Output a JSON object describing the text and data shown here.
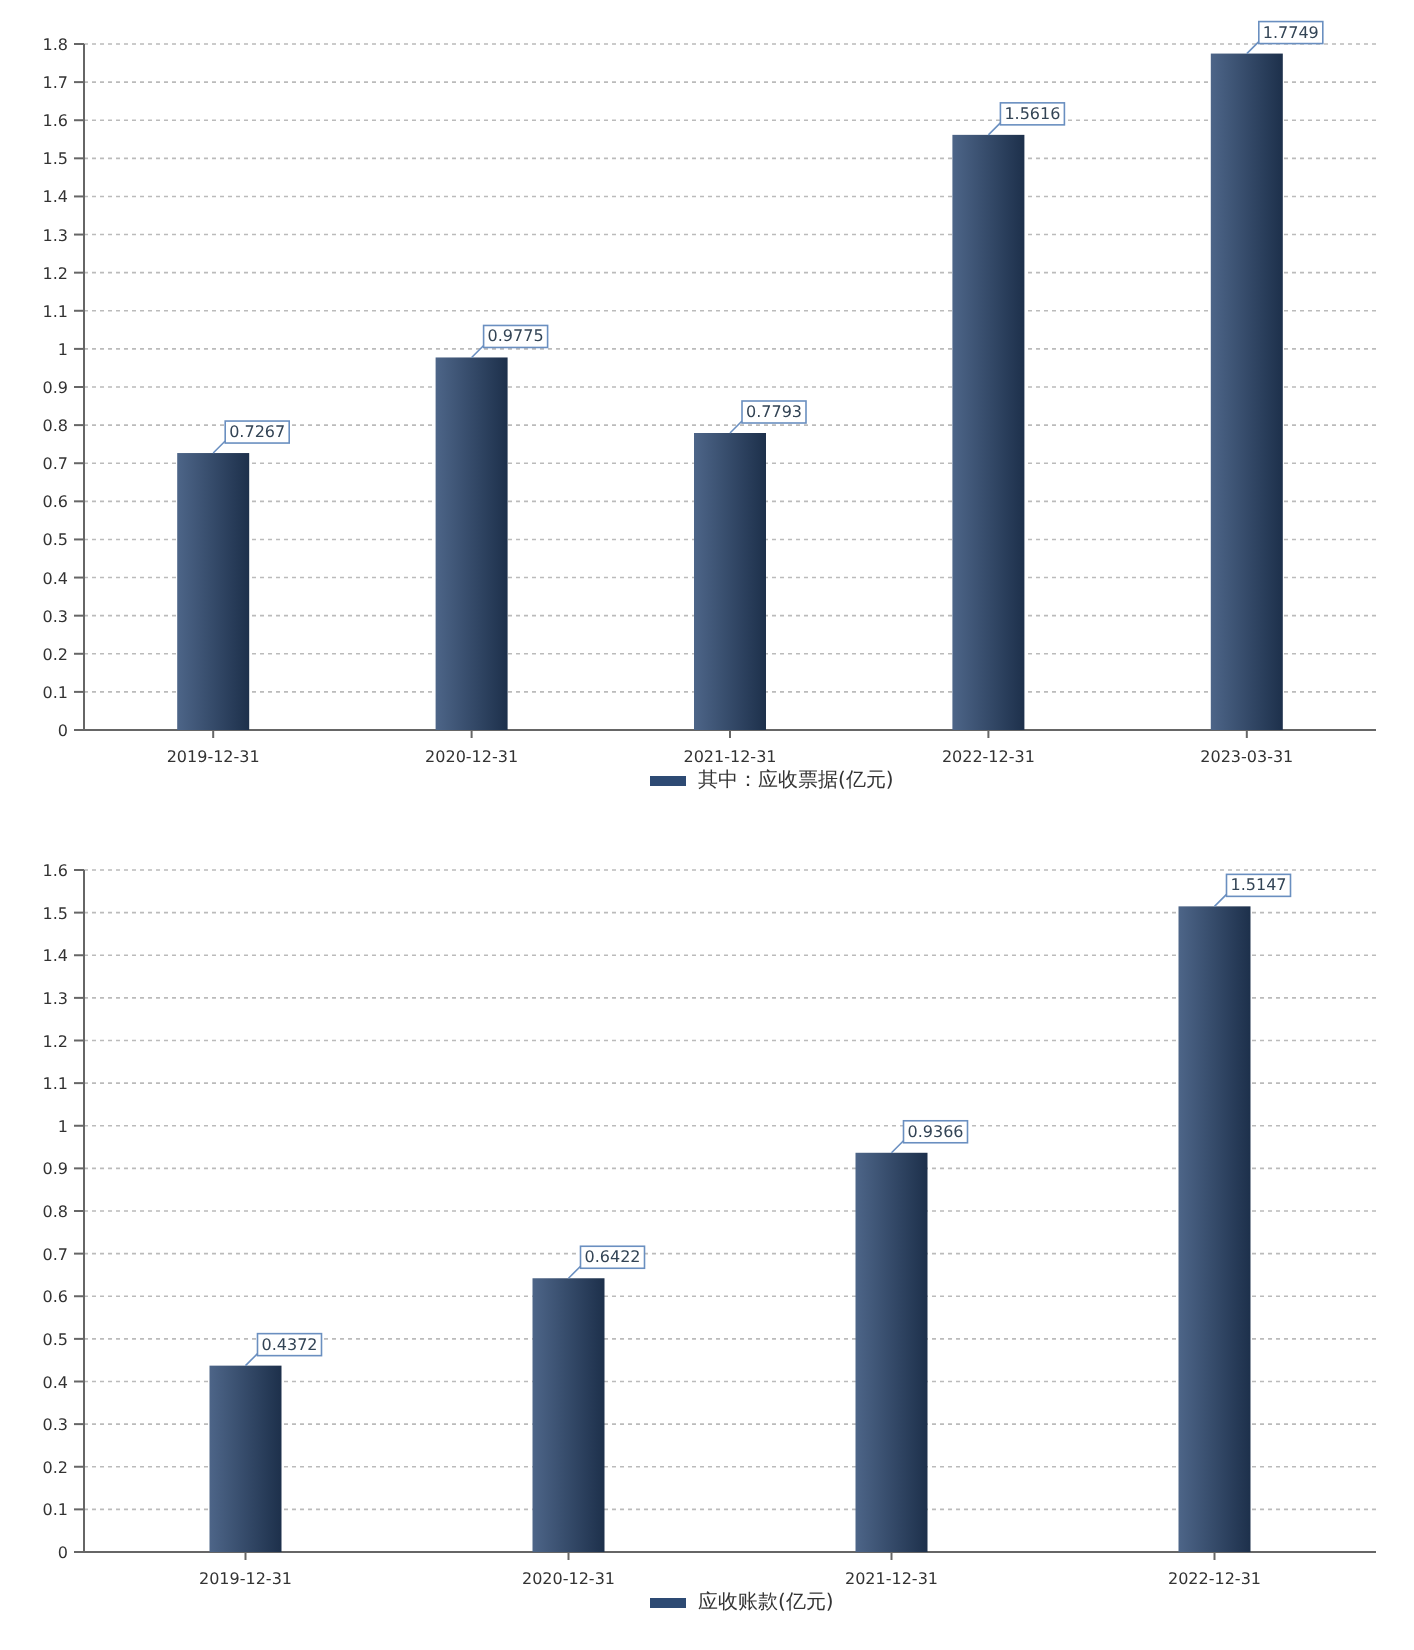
{
  "chart_data": [
    {
      "type": "bar",
      "categories": [
        "2019-12-31",
        "2020-12-31",
        "2021-12-31",
        "2022-12-31",
        "2023-03-31"
      ],
      "series": [
        {
          "name": "其中：应收票据(亿元)",
          "color": "#2d4a73",
          "values": [
            0.7267,
            0.9775,
            0.7793,
            1.5616,
            1.7749
          ]
        }
      ],
      "ylim": [
        0,
        1.8
      ],
      "yticks": [
        0,
        0.1,
        0.2,
        0.3,
        0.4,
        0.5,
        0.6,
        0.7,
        0.8,
        0.9,
        1,
        1.1,
        1.2,
        1.3,
        1.4,
        1.5,
        1.6,
        1.7,
        1.8
      ],
      "grid": "y",
      "legend": "bottom",
      "data_labels": true
    },
    {
      "type": "bar",
      "categories": [
        "2019-12-31",
        "2020-12-31",
        "2021-12-31",
        "2022-12-31"
      ],
      "series": [
        {
          "name": "应收账款(亿元)",
          "color": "#2d4a73",
          "values": [
            0.4372,
            0.6422,
            0.9366,
            1.5147
          ]
        }
      ],
      "ylim": [
        0,
        1.6
      ],
      "yticks": [
        0,
        0.1,
        0.2,
        0.3,
        0.4,
        0.5,
        0.6,
        0.7,
        0.8,
        0.9,
        1,
        1.1,
        1.2,
        1.3,
        1.4,
        1.5,
        1.6
      ],
      "grid": "y",
      "legend": "bottom",
      "data_labels": true
    }
  ]
}
